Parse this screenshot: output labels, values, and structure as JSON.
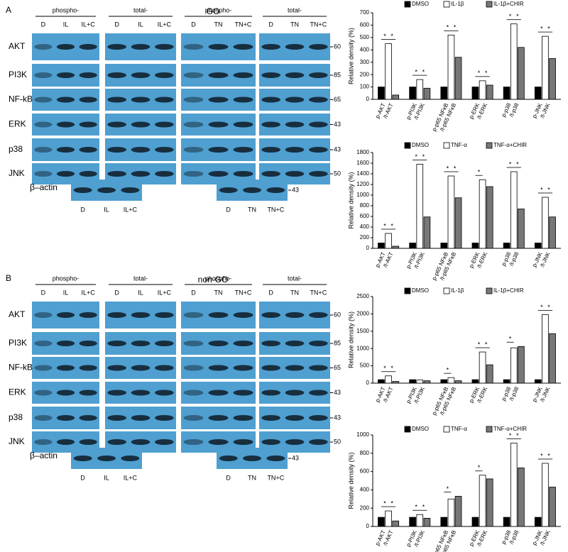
{
  "panels": [
    {
      "label": "A",
      "title": "GO",
      "left": {
        "phospho": {
          "header": "phospho-",
          "lanes": [
            "D",
            "IL",
            "IL+C"
          ]
        },
        "total": {
          "header": "total-",
          "lanes": [
            "D",
            "IL",
            "IL+C"
          ]
        },
        "actin_lanes": [
          "D",
          "IL",
          "IL+C"
        ]
      },
      "right": {
        "phospho": {
          "header": "phospho-",
          "lanes": [
            "D",
            "TN",
            "TN+C"
          ]
        },
        "total": {
          "header": "total-",
          "lanes": [
            "D",
            "TN",
            "TN+C"
          ]
        },
        "actin_lanes": [
          "D",
          "TN",
          "TN+C"
        ]
      },
      "rows": [
        "AKT",
        "PI3K",
        "NF-kB",
        "ERK",
        "p38",
        "JNK"
      ],
      "markers": [
        60,
        85,
        65,
        43,
        43,
        50
      ],
      "actin": {
        "label": "β–actin",
        "marker": 43
      }
    },
    {
      "label": "B",
      "title": "non-GO",
      "left": {
        "phospho": {
          "header": "phospho-",
          "lanes": [
            "D",
            "IL",
            "IL+C"
          ]
        },
        "total": {
          "header": "total-",
          "lanes": [
            "D",
            "IL",
            "IL+C"
          ]
        },
        "actin_lanes": [
          "D",
          "IL",
          "IL+C"
        ]
      },
      "right": {
        "phospho": {
          "header": "phospho-",
          "lanes": [
            "D",
            "TN",
            "TN+C"
          ]
        },
        "total": {
          "header": "total-",
          "lanes": [
            "D",
            "TN",
            "TN+C"
          ]
        },
        "actin_lanes": [
          "D",
          "TN",
          "TN+C"
        ]
      },
      "rows": [
        "AKT",
        "PI3K",
        "NF-kB",
        "ERK",
        "p38",
        "JNK"
      ],
      "markers": [
        60,
        85,
        65,
        43,
        43,
        50
      ],
      "actin": {
        "label": "β–actin",
        "marker": 43
      }
    }
  ],
  "chart_data": [
    {
      "type": "bar",
      "ylabel": "Relative density (%)",
      "ylim": [
        0,
        700
      ],
      "yticks": [
        0,
        100,
        200,
        300,
        400,
        500,
        600,
        700
      ],
      "categories": [
        [
          "p-AKT",
          "/t-AKT"
        ],
        [
          "p-PI3K",
          "/t-PI3K"
        ],
        [
          "p-p65 NFκB",
          "/t-p65 NFκB"
        ],
        [
          "p-ERK",
          "/t-ERK"
        ],
        [
          "p-p38",
          "/t-p38"
        ],
        [
          "p-JNK",
          "/t-JNK"
        ]
      ],
      "series": [
        {
          "name": "DMSO",
          "color": "#000000",
          "values": [
            100,
            100,
            100,
            100,
            100,
            100
          ]
        },
        {
          "name": "IL-1β",
          "color": "#ffffff",
          "values": [
            450,
            160,
            520,
            150,
            610,
            510
          ]
        },
        {
          "name": "IL-1β+CHIR",
          "color": "#777777",
          "values": [
            35,
            90,
            340,
            115,
            420,
            330
          ]
        }
      ],
      "annotations": [
        {
          "text": "*",
          "category": "p-AKT"
        },
        {
          "text": "*",
          "category": "p-AKT"
        },
        {
          "text": "*",
          "category": "p-PI3K"
        },
        {
          "text": "*",
          "category": "p-PI3K"
        },
        {
          "text": "*",
          "category": "p-p65 NFκB"
        },
        {
          "text": "*",
          "category": "p-p65 NFκB"
        },
        {
          "text": "*",
          "category": "p-ERK"
        },
        {
          "text": "*",
          "category": "p-ERK"
        },
        {
          "text": "*",
          "category": "p-p38"
        },
        {
          "text": "*",
          "category": "p-p38"
        },
        {
          "text": "*",
          "category": "p-JNK"
        },
        {
          "text": "*",
          "category": "p-JNK"
        }
      ]
    },
    {
      "type": "bar",
      "ylabel": "Relative density (%)",
      "ylim": [
        0,
        1800
      ],
      "yticks": [
        0,
        200,
        400,
        600,
        800,
        1000,
        1200,
        1400,
        1600,
        1800
      ],
      "categories": [
        [
          "p-AKT",
          "/t-AKT"
        ],
        [
          "p-PI3K",
          "/t-PI3K"
        ],
        [
          "p-p65 NFκB",
          "/t-p65 NFκB"
        ],
        [
          "p-ERK",
          "/t-ERK"
        ],
        [
          "p-p38",
          "/t-p38"
        ],
        [
          "p-JNK",
          "/t-JNK"
        ]
      ],
      "series": [
        {
          "name": "DMSO",
          "color": "#000000",
          "values": [
            100,
            100,
            100,
            100,
            100,
            100
          ]
        },
        {
          "name": "TNF-α",
          "color": "#ffffff",
          "values": [
            280,
            1580,
            1360,
            1290,
            1440,
            960
          ]
        },
        {
          "name": "TNF-α+CHIR",
          "color": "#777777",
          "values": [
            40,
            590,
            950,
            1160,
            740,
            590
          ]
        }
      ],
      "annotations": [
        {
          "text": "*",
          "category": "p-AKT"
        },
        {
          "text": "*",
          "category": "p-AKT"
        },
        {
          "text": "*",
          "category": "p-PI3K"
        },
        {
          "text": "*",
          "category": "p-PI3K"
        },
        {
          "text": "*",
          "category": "p-p65 NFκB"
        },
        {
          "text": "*",
          "category": "p-p65 NFκB"
        },
        {
          "text": "*",
          "category": "p-ERK"
        },
        {
          "text": "*",
          "category": "p-p38"
        },
        {
          "text": "*",
          "category": "p-p38"
        },
        {
          "text": "*",
          "category": "p-JNK"
        },
        {
          "text": "*",
          "category": "p-JNK"
        }
      ]
    },
    {
      "type": "bar",
      "ylabel": "Relative density (%)",
      "ylim": [
        0,
        2500
      ],
      "yticks": [
        0,
        500,
        1000,
        1500,
        2000,
        2500
      ],
      "categories": [
        [
          "p-AKT",
          "/t-AKT"
        ],
        [
          "p-PI3K",
          "/t-PI3K"
        ],
        [
          "p-p65 NFκB",
          "/t-p65 NFκB"
        ],
        [
          "p-ERK",
          "/t-ERK"
        ],
        [
          "p-p38",
          "/t-p38"
        ],
        [
          "p-JNK",
          "/t-JNK"
        ]
      ],
      "series": [
        {
          "name": "DMSO",
          "color": "#000000",
          "values": [
            100,
            100,
            100,
            100,
            100,
            100
          ]
        },
        {
          "name": "IL-1β",
          "color": "#ffffff",
          "values": [
            210,
            90,
            160,
            900,
            1020,
            1980
          ]
        },
        {
          "name": "IL-1β+CHIR",
          "color": "#777777",
          "values": [
            50,
            70,
            70,
            530,
            1060,
            1430
          ]
        }
      ],
      "annotations": [
        {
          "text": "*",
          "category": "p-AKT"
        },
        {
          "text": "*",
          "category": "p-AKT"
        },
        {
          "text": "*",
          "category": "p-p65 NFκB"
        },
        {
          "text": "*",
          "category": "p-ERK"
        },
        {
          "text": "*",
          "category": "p-ERK"
        },
        {
          "text": "*",
          "category": "p-p38"
        },
        {
          "text": "*",
          "category": "p-JNK"
        },
        {
          "text": "*",
          "category": "p-JNK"
        }
      ]
    },
    {
      "type": "bar",
      "ylabel": "Relative density (%)",
      "ylim": [
        0,
        1000
      ],
      "yticks": [
        0,
        200,
        400,
        600,
        800,
        1000
      ],
      "categories": [
        [
          "p-AKT",
          "/t-AKT"
        ],
        [
          "p-PI3K",
          "/t-PI3K"
        ],
        [
          "p-p65 NFκB",
          "/t-p65 NFκB"
        ],
        [
          "p-ERK",
          "/t-ERK"
        ],
        [
          "p-p38",
          "/t-p38"
        ],
        [
          "p-JNK",
          "/t-JNK"
        ]
      ],
      "series": [
        {
          "name": "DMSO",
          "color": "#000000",
          "values": [
            100,
            100,
            100,
            100,
            100,
            100
          ]
        },
        {
          "name": "TNF-α",
          "color": "#ffffff",
          "values": [
            170,
            130,
            300,
            560,
            910,
            690
          ]
        },
        {
          "name": "TNF-α+CHIR",
          "color": "#777777",
          "values": [
            60,
            90,
            330,
            520,
            640,
            430
          ]
        }
      ],
      "annotations": [
        {
          "text": "*",
          "category": "p-AKT"
        },
        {
          "text": "*",
          "category": "p-AKT"
        },
        {
          "text": "*",
          "category": "p-PI3K"
        },
        {
          "text": "*",
          "category": "p-PI3K"
        },
        {
          "text": "*",
          "category": "p-p65 NFκB"
        },
        {
          "text": "*",
          "category": "p-ERK"
        },
        {
          "text": "*",
          "category": "p-p38"
        },
        {
          "text": "*",
          "category": "p-p38"
        },
        {
          "text": "*",
          "category": "p-JNK"
        },
        {
          "text": "*",
          "category": "p-JNK"
        }
      ]
    }
  ]
}
